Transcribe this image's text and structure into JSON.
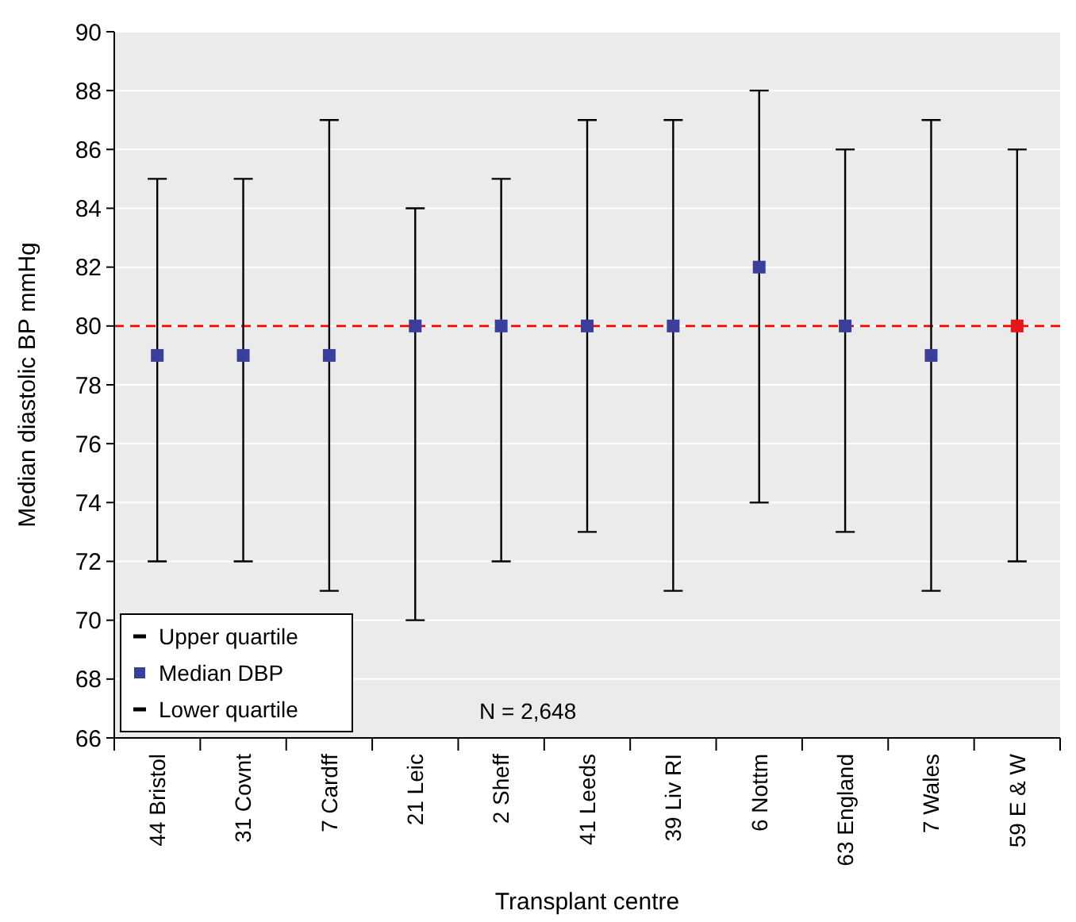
{
  "chart_data": {
    "type": "scatter",
    "xlabel": "Transplant centre",
    "ylabel": "Median diastolic BP mmHg",
    "categories": [
      "44 Bristol",
      "31 Covnt",
      "7 Cardff",
      "21 Leic",
      "2 Sheff",
      "41 Leeds",
      "39 Liv RI",
      "6 Nottm",
      "63 England",
      "7 Wales",
      "59 E & W"
    ],
    "series": [
      {
        "name": "Median DBP",
        "type": "scatter",
        "marker": "square",
        "color": "#3a3f9c",
        "colors": [
          "#3a3f9c",
          "#3a3f9c",
          "#3a3f9c",
          "#3a3f9c",
          "#3a3f9c",
          "#3a3f9c",
          "#3a3f9c",
          "#3a3f9c",
          "#3a3f9c",
          "#3a3f9c",
          "#e8141c"
        ],
        "values": [
          79,
          79,
          79,
          80,
          80,
          80,
          80,
          82,
          80,
          79,
          80
        ],
        "errors": [
          [
            72,
            85
          ],
          [
            72,
            85
          ],
          [
            71,
            87
          ],
          [
            70,
            84
          ],
          [
            72,
            85
          ],
          [
            73,
            87
          ],
          [
            71,
            87
          ],
          [
            74,
            88
          ],
          [
            73,
            86
          ],
          [
            71,
            87
          ],
          [
            72,
            86
          ]
        ]
      }
    ],
    "ylim": [
      66,
      90
    ],
    "yticks": [
      66,
      68,
      70,
      72,
      74,
      76,
      78,
      80,
      82,
      84,
      86,
      88,
      90
    ],
    "grid": "y",
    "legend": "bottom left",
    "ref_lines": [
      {
        "axis": "y",
        "value": 80,
        "color": "#ff0000",
        "line_style": "dashed"
      }
    ],
    "annotations": [
      "Upper quartile",
      "Lower quartile",
      "N = 2,648"
    ]
  }
}
